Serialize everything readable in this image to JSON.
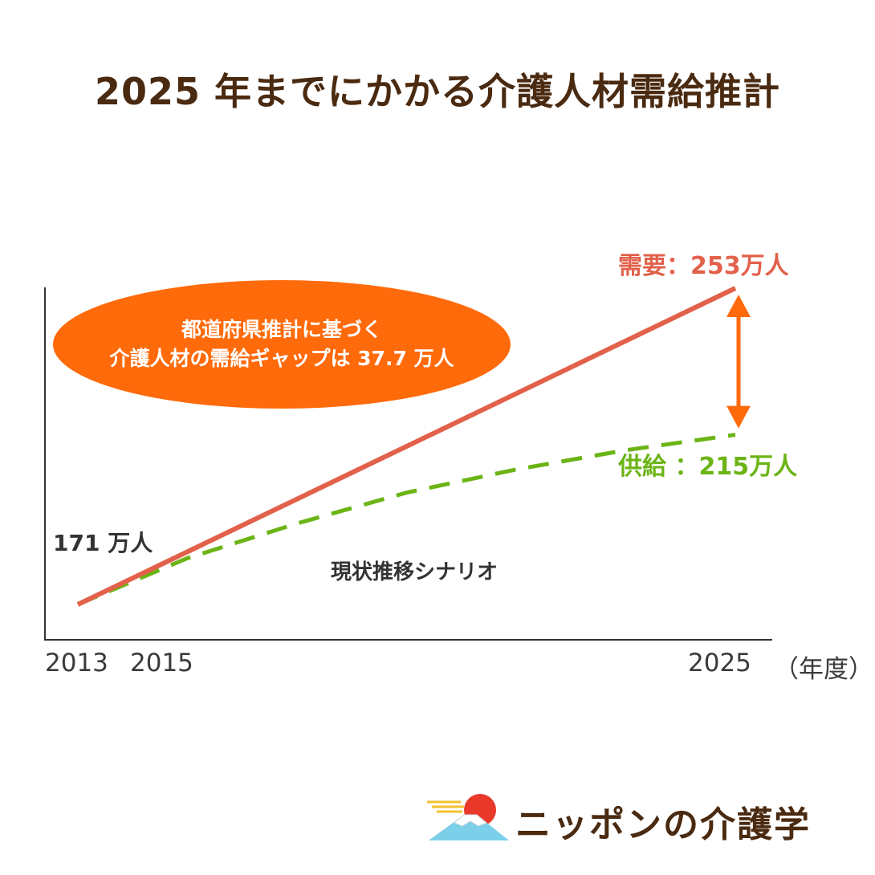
{
  "title": "2025 年までにかかる介護人材需給推計",
  "callout": {
    "line1": "都道府県推計に基づく",
    "line2": "介護人材の需給ギャップは 37.7 万人"
  },
  "logo": {
    "text": "ニッポンの介護学"
  },
  "colors": {
    "demand": "#e2614b",
    "supply": "#6bb415",
    "callout": "#ff6a0a",
    "title": "#4a2a10",
    "gap_arrow": "#ff6a0a"
  },
  "chart_data": {
    "type": "line",
    "title": "2025 年までにかかる介護人材需給推計",
    "xlabel": "（年度）",
    "ylabel": "",
    "x": [
      2013,
      2015,
      2025
    ],
    "x_tick_labels": [
      "2013",
      "2015",
      "2025"
    ],
    "y_start": 171,
    "series": [
      {
        "name": "需要",
        "style": "solid",
        "label": "需要：253万人",
        "x": [
          2013,
          2025
        ],
        "values": [
          171,
          253
        ]
      },
      {
        "name": "供給",
        "style": "dashed",
        "label": "供給 ：215万人",
        "x": [
          2013,
          2015,
          2017,
          2019,
          2021,
          2023,
          2025
        ],
        "values": [
          171,
          183,
          192,
          200,
          206,
          211,
          215
        ]
      }
    ],
    "annotations": {
      "start_label": "171 万人",
      "scenario": "現状推移シナリオ",
      "gap": 37.7
    },
    "grid": false,
    "legend": "none"
  }
}
